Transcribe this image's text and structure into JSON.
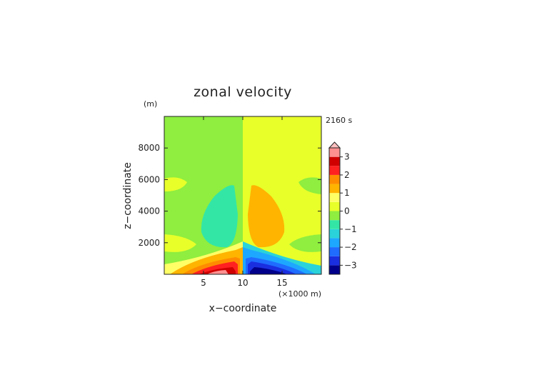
{
  "chart_data": {
    "type": "heatmap",
    "title": "zonal velocity",
    "xlabel": "x−coordinate",
    "ylabel": "z−coordinate",
    "x_unit": "(×1000 m)",
    "y_unit": "(m)",
    "time_label": "2160 s",
    "xlim": [
      0,
      20
    ],
    "ylim": [
      0,
      10000
    ],
    "x_ticks": [
      "5",
      "10",
      "15"
    ],
    "x_tick_values": [
      5,
      10,
      15
    ],
    "y_ticks": [
      "2000",
      "4000",
      "6000",
      "8000"
    ],
    "y_tick_values": [
      2000,
      4000,
      6000,
      8000
    ],
    "colorbar": {
      "levels": [
        -3.5,
        -3,
        -2.5,
        -2,
        -1.5,
        -1,
        -0.5,
        0,
        0.5,
        1,
        1.5,
        2,
        2.5,
        3,
        3.5
      ],
      "colors": [
        "#00008b",
        "#1a2fe0",
        "#1f6cff",
        "#1ea7ff",
        "#2ad3d9",
        "#33e6a6",
        "#8fee3f",
        "#e8ff2a",
        "#ffff66",
        "#ffb400",
        "#ff8c00",
        "#ff2020",
        "#d00000",
        "#ff9090",
        "#ffc0c0"
      ],
      "tick_labels": [
        "3",
        "2",
        "1",
        "0",
        "−1",
        "−2",
        "−3"
      ],
      "tick_values": [
        3,
        2,
        1,
        0,
        -1,
        -2,
        -3
      ],
      "extend": "max"
    },
    "regions": [
      {
        "name": "upper-left",
        "value": -0.3
      },
      {
        "name": "upper-right",
        "value": 0.3
      },
      {
        "name": "left-mid-lobe",
        "value": -1.1
      },
      {
        "name": "right-mid-lobe",
        "value": 1.1
      },
      {
        "name": "left-surface-jet",
        "value": 3.2
      },
      {
        "name": "right-surface-jet",
        "value": -3.3
      }
    ]
  },
  "colors": {
    "background": "#ffffff",
    "axis": "#222222"
  }
}
